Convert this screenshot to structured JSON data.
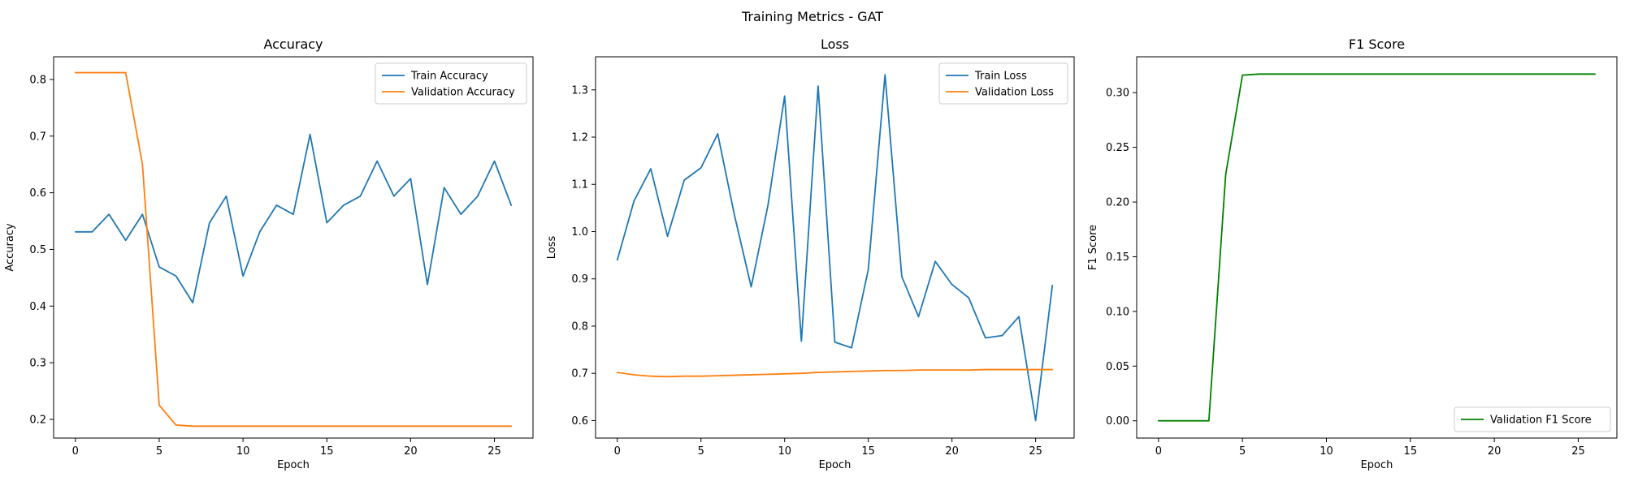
{
  "figure": {
    "suptitle": "Training Metrics - GAT"
  },
  "chart_data": [
    {
      "type": "line",
      "title": "Accuracy",
      "xlabel": "Epoch",
      "ylabel": "Accuracy",
      "xlim": [
        -1.3,
        27.3
      ],
      "ylim": [
        0.167,
        0.84
      ],
      "xticks": [
        0,
        5,
        10,
        15,
        20,
        25
      ],
      "yticks": [
        0.2,
        0.3,
        0.4,
        0.5,
        0.6,
        0.7,
        0.8
      ],
      "ytick_labels": [
        "0.2",
        "0.3",
        "0.4",
        "0.5",
        "0.6",
        "0.7",
        "0.8"
      ],
      "legend_position": "upper right",
      "x": [
        0,
        1,
        2,
        3,
        4,
        5,
        6,
        7,
        8,
        9,
        10,
        11,
        12,
        13,
        14,
        15,
        16,
        17,
        18,
        19,
        20,
        21,
        22,
        23,
        24,
        25,
        26
      ],
      "series": [
        {
          "name": "Train Accuracy",
          "color": "#1f77b4",
          "values": [
            0.531,
            0.531,
            0.562,
            0.516,
            0.562,
            0.469,
            0.453,
            0.406,
            0.547,
            0.594,
            0.453,
            0.531,
            0.578,
            0.562,
            0.703,
            0.547,
            0.578,
            0.594,
            0.656,
            0.594,
            0.625,
            0.438,
            0.609,
            0.562,
            0.594,
            0.656,
            0.578
          ]
        },
        {
          "name": "Validation Accuracy",
          "color": "#ff7f0e",
          "values": [
            0.812,
            0.812,
            0.812,
            0.812,
            0.65,
            0.225,
            0.19,
            0.188,
            0.188,
            0.188,
            0.188,
            0.188,
            0.188,
            0.188,
            0.188,
            0.188,
            0.188,
            0.188,
            0.188,
            0.188,
            0.188,
            0.188,
            0.188,
            0.188,
            0.188,
            0.188,
            0.188
          ]
        }
      ]
    },
    {
      "type": "line",
      "title": "Loss",
      "xlabel": "Epoch",
      "ylabel": "Loss",
      "xlim": [
        -1.3,
        27.3
      ],
      "ylim": [
        0.563,
        1.37
      ],
      "xticks": [
        0,
        5,
        10,
        15,
        20,
        25
      ],
      "yticks": [
        0.6,
        0.7,
        0.8,
        0.9,
        1.0,
        1.1,
        1.2,
        1.3
      ],
      "ytick_labels": [
        "0.6",
        "0.7",
        "0.8",
        "0.9",
        "1.0",
        "1.1",
        "1.2",
        "1.3"
      ],
      "legend_position": "upper right",
      "x": [
        0,
        1,
        2,
        3,
        4,
        5,
        6,
        7,
        8,
        9,
        10,
        11,
        12,
        13,
        14,
        15,
        16,
        17,
        18,
        19,
        20,
        21,
        22,
        23,
        24,
        25,
        26
      ],
      "series": [
        {
          "name": "Train Loss",
          "color": "#1f77b4",
          "values": [
            0.94,
            1.065,
            1.133,
            0.99,
            1.109,
            1.135,
            1.207,
            1.035,
            0.883,
            1.055,
            1.287,
            0.768,
            1.308,
            0.766,
            0.754,
            0.92,
            1.332,
            0.905,
            0.82,
            0.937,
            0.888,
            0.86,
            0.775,
            0.78,
            0.82,
            0.6,
            0.886
          ]
        },
        {
          "name": "Validation Loss",
          "color": "#ff7f0e",
          "values": [
            0.702,
            0.697,
            0.694,
            0.693,
            0.694,
            0.694,
            0.695,
            0.696,
            0.697,
            0.698,
            0.699,
            0.7,
            0.702,
            0.703,
            0.704,
            0.705,
            0.706,
            0.706,
            0.707,
            0.707,
            0.707,
            0.707,
            0.708,
            0.708,
            0.708,
            0.708,
            0.708
          ]
        }
      ]
    },
    {
      "type": "line",
      "title": "F1 Score",
      "xlabel": "Epoch",
      "ylabel": "F1 Score",
      "xlim": [
        -1.3,
        27.3
      ],
      "ylim": [
        -0.0158,
        0.3328
      ],
      "xticks": [
        0,
        5,
        10,
        15,
        20,
        25
      ],
      "yticks": [
        0.0,
        0.05,
        0.1,
        0.15,
        0.2,
        0.25,
        0.3
      ],
      "ytick_labels": [
        "0.00",
        "0.05",
        "0.10",
        "0.15",
        "0.20",
        "0.25",
        "0.30"
      ],
      "legend_position": "lower right",
      "x": [
        0,
        1,
        2,
        3,
        4,
        5,
        6,
        7,
        8,
        9,
        10,
        11,
        12,
        13,
        14,
        15,
        16,
        17,
        18,
        19,
        20,
        21,
        22,
        23,
        24,
        25,
        26
      ],
      "series": [
        {
          "name": "Validation F1 Score",
          "color": "#008000",
          "values": [
            0,
            0,
            0,
            0,
            0.225,
            0.316,
            0.317,
            0.317,
            0.317,
            0.317,
            0.317,
            0.317,
            0.317,
            0.317,
            0.317,
            0.317,
            0.317,
            0.317,
            0.317,
            0.317,
            0.317,
            0.317,
            0.317,
            0.317,
            0.317,
            0.317,
            0.317
          ]
        }
      ]
    }
  ]
}
